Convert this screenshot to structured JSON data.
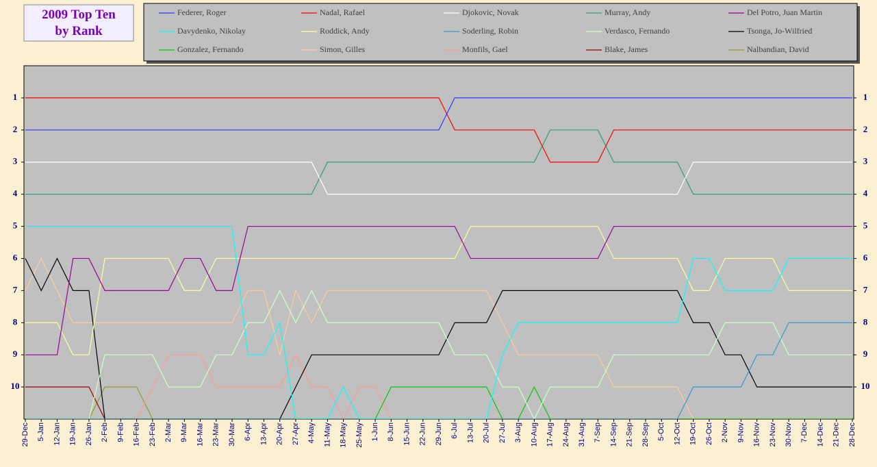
{
  "chart_data": {
    "type": "line",
    "title": [
      "2009 Top Ten",
      "by Rank"
    ],
    "categories": [
      "29-Dec",
      "5-Jan",
      "12-Jan",
      "19-Jan",
      "26-Jan",
      "2-Feb",
      "9-Feb",
      "16-Feb",
      "23-Feb",
      "2-Mar",
      "9-Mar",
      "16-Mar",
      "23-Mar",
      "30-Mar",
      "6-Apr",
      "13-Apr",
      "20-Apr",
      "27-Apr",
      "4-May",
      "11-May",
      "18-May",
      "25-May",
      "1-Jun",
      "8-Jun",
      "15-Jun",
      "22-Jun",
      "29-Jun",
      "6-Jul",
      "13-Jul",
      "20-Jul",
      "27-Jul",
      "3-Aug",
      "10-Aug",
      "17-Aug",
      "24-Aug",
      "31-Aug",
      "7-Sep",
      "14-Sep",
      "21-Sep",
      "28-Sep",
      "5-Oct",
      "12-Oct",
      "19-Oct",
      "26-Oct",
      "2-Nov",
      "9-Nov",
      "16-Nov",
      "23-Nov",
      "30-Nov",
      "7-Dec",
      "14-Dec",
      "21-Dec",
      "28-Dec"
    ],
    "ylim": [
      0,
      11
    ],
    "y_reversed": true,
    "yticks": [
      1,
      2,
      3,
      4,
      5,
      6,
      7,
      8,
      9,
      10
    ],
    "series": [
      {
        "name": "Federer, Roger",
        "color": "#3333ff",
        "values": [
          2,
          2,
          2,
          2,
          2,
          2,
          2,
          2,
          2,
          2,
          2,
          2,
          2,
          2,
          2,
          2,
          2,
          2,
          2,
          2,
          2,
          2,
          2,
          2,
          2,
          2,
          2,
          1,
          1,
          1,
          1,
          1,
          1,
          1,
          1,
          1,
          1,
          1,
          1,
          1,
          1,
          1,
          1,
          1,
          1,
          1,
          1,
          1,
          1,
          1,
          1,
          1,
          1
        ]
      },
      {
        "name": "Nadal, Rafael",
        "color": "#ff0000",
        "values": [
          1,
          1,
          1,
          1,
          1,
          1,
          1,
          1,
          1,
          1,
          1,
          1,
          1,
          1,
          1,
          1,
          1,
          1,
          1,
          1,
          1,
          1,
          1,
          1,
          1,
          1,
          1,
          2,
          2,
          2,
          2,
          2,
          2,
          3,
          3,
          3,
          3,
          2,
          2,
          2,
          2,
          2,
          2,
          2,
          2,
          2,
          2,
          2,
          2,
          2,
          2,
          2,
          2
        ]
      },
      {
        "name": "Djokovic, Novak",
        "color": "#ffffff",
        "values": [
          3,
          3,
          3,
          3,
          3,
          3,
          3,
          3,
          3,
          3,
          3,
          3,
          3,
          3,
          3,
          3,
          3,
          3,
          3,
          4,
          4,
          4,
          4,
          4,
          4,
          4,
          4,
          4,
          4,
          4,
          4,
          4,
          4,
          4,
          4,
          4,
          4,
          4,
          4,
          4,
          4,
          4,
          3,
          3,
          3,
          3,
          3,
          3,
          3,
          3,
          3,
          3,
          3
        ]
      },
      {
        "name": "Murray, Andy",
        "color": "#2f9f7f",
        "values": [
          4,
          4,
          4,
          4,
          4,
          4,
          4,
          4,
          4,
          4,
          4,
          4,
          4,
          4,
          4,
          4,
          4,
          4,
          4,
          3,
          3,
          3,
          3,
          3,
          3,
          3,
          3,
          3,
          3,
          3,
          3,
          3,
          3,
          2,
          2,
          2,
          2,
          3,
          3,
          3,
          3,
          3,
          4,
          4,
          4,
          4,
          4,
          4,
          4,
          4,
          4,
          4,
          4
        ]
      },
      {
        "name": "Del Potro, Juan Martin",
        "color": "#990099",
        "values": [
          9,
          9,
          9,
          6,
          6,
          7,
          7,
          7,
          7,
          7,
          6,
          6,
          7,
          7,
          5,
          5,
          5,
          5,
          5,
          5,
          5,
          5,
          5,
          5,
          5,
          5,
          5,
          5,
          6,
          6,
          6,
          6,
          6,
          6,
          6,
          6,
          6,
          5,
          5,
          5,
          5,
          5,
          5,
          5,
          5,
          5,
          5,
          5,
          5,
          5,
          5,
          5,
          5
        ]
      },
      {
        "name": "Davydenko, Nikolay",
        "color": "#00ffff",
        "values": [
          5,
          5,
          5,
          5,
          5,
          5,
          5,
          5,
          5,
          5,
          5,
          5,
          5,
          5,
          9,
          9,
          8,
          11,
          11,
          11,
          10,
          11,
          11,
          11,
          11,
          11,
          11,
          11,
          11,
          11,
          9,
          8,
          8,
          8,
          8,
          8,
          8,
          8,
          8,
          8,
          8,
          8,
          6,
          6,
          7,
          7,
          7,
          7,
          6,
          6,
          6,
          6,
          6
        ]
      },
      {
        "name": "Roddick, Andy",
        "color": "#ffff99",
        "values": [
          8,
          8,
          8,
          9,
          9,
          6,
          6,
          6,
          6,
          6,
          7,
          7,
          6,
          6,
          6,
          6,
          6,
          6,
          6,
          6,
          6,
          6,
          6,
          6,
          6,
          6,
          6,
          6,
          5,
          5,
          5,
          5,
          5,
          5,
          5,
          5,
          5,
          6,
          6,
          6,
          6,
          6,
          7,
          7,
          6,
          6,
          6,
          6,
          7,
          7,
          7,
          7,
          7
        ]
      },
      {
        "name": "Soderling, Robin",
        "color": "#3399cc",
        "values": [
          11,
          11,
          11,
          11,
          11,
          11,
          11,
          11,
          11,
          11,
          11,
          11,
          11,
          11,
          11,
          11,
          11,
          11,
          11,
          11,
          11,
          11,
          11,
          11,
          11,
          11,
          11,
          11,
          11,
          11,
          11,
          11,
          11,
          11,
          11,
          11,
          11,
          11,
          11,
          11,
          11,
          11,
          10,
          10,
          10,
          10,
          9,
          9,
          8,
          8,
          8,
          8,
          8
        ]
      },
      {
        "name": "Verdasco, Fernando",
        "color": "#ccffcc",
        "values": [
          11,
          11,
          11,
          11,
          11,
          9,
          9,
          9,
          9,
          10,
          10,
          10,
          9,
          9,
          8,
          8,
          7,
          8,
          7,
          8,
          8,
          8,
          8,
          8,
          8,
          8,
          8,
          9,
          9,
          9,
          10,
          10,
          11,
          10,
          10,
          10,
          10,
          9,
          9,
          9,
          9,
          9,
          9,
          9,
          8,
          8,
          8,
          8,
          9,
          9,
          9,
          9,
          9
        ]
      },
      {
        "name": "Tsonga, Jo-Wilfried",
        "color": "#000000",
        "values": [
          6,
          7,
          6,
          7,
          7,
          11,
          11,
          11,
          11,
          11,
          11,
          11,
          11,
          11,
          11,
          11,
          11,
          10,
          9,
          9,
          9,
          9,
          9,
          9,
          9,
          9,
          9,
          8,
          8,
          8,
          7,
          7,
          7,
          7,
          7,
          7,
          7,
          7,
          7,
          7,
          7,
          7,
          8,
          8,
          9,
          9,
          10,
          10,
          10,
          10,
          10,
          10,
          10
        ]
      },
      {
        "name": "Gonzalez, Fernando",
        "color": "#00cc00",
        "values": [
          11,
          11,
          11,
          11,
          11,
          11,
          11,
          11,
          11,
          11,
          11,
          11,
          11,
          11,
          11,
          11,
          11,
          11,
          11,
          11,
          11,
          11,
          11,
          10,
          10,
          10,
          10,
          10,
          10,
          10,
          11,
          11,
          10,
          11,
          11,
          11,
          11,
          11,
          11,
          11,
          11,
          11,
          11,
          11,
          11,
          11,
          11,
          11,
          11,
          11,
          11,
          11,
          11
        ]
      },
      {
        "name": "Simon, Gilles",
        "color": "#ffcc99",
        "values": [
          7,
          6,
          7,
          8,
          8,
          8,
          8,
          8,
          8,
          8,
          8,
          8,
          8,
          8,
          7,
          7,
          9,
          7,
          8,
          7,
          7,
          7,
          7,
          7,
          7,
          7,
          7,
          7,
          7,
          7,
          8,
          9,
          9,
          9,
          9,
          9,
          9,
          10,
          10,
          10,
          10,
          10,
          11,
          11,
          11,
          11,
          11,
          11,
          11,
          11,
          11,
          11,
          11
        ]
      },
      {
        "name": "Monfils, Gael",
        "color": "#ff9999",
        "values": [
          11,
          11,
          11,
          11,
          11,
          11,
          11,
          11,
          10,
          9,
          9,
          9,
          10,
          10,
          10,
          10,
          10,
          9,
          10,
          10,
          11,
          10,
          10,
          11,
          11,
          11,
          11,
          11,
          11,
          11,
          11,
          11,
          11,
          11,
          11,
          11,
          11,
          11,
          11,
          11,
          11,
          11,
          11,
          11,
          11,
          11,
          11,
          11,
          11,
          11,
          11,
          11,
          11
        ]
      },
      {
        "name": "Blake, James",
        "color": "#990000",
        "values": [
          10,
          10,
          10,
          10,
          10,
          11,
          11,
          11,
          11,
          11,
          11,
          11,
          11,
          11,
          11,
          11,
          11,
          11,
          11,
          11,
          11,
          11,
          11,
          11,
          11,
          11,
          11,
          11,
          11,
          11,
          11,
          11,
          11,
          11,
          11,
          11,
          11,
          11,
          11,
          11,
          11,
          11,
          11,
          11,
          11,
          11,
          11,
          11,
          11,
          11,
          11,
          11,
          11
        ]
      },
      {
        "name": "Nalbandian, David",
        "color": "#999933",
        "values": [
          11,
          11,
          11,
          11,
          11,
          10,
          10,
          10,
          11,
          11,
          11,
          11,
          11,
          11,
          11,
          11,
          11,
          11,
          11,
          11,
          11,
          11,
          11,
          11,
          11,
          11,
          11,
          11,
          11,
          11,
          11,
          11,
          11,
          11,
          11,
          11,
          11,
          11,
          11,
          11,
          11,
          11,
          11,
          11,
          11,
          11,
          11,
          11,
          11,
          11,
          11,
          11,
          11
        ]
      }
    ]
  }
}
